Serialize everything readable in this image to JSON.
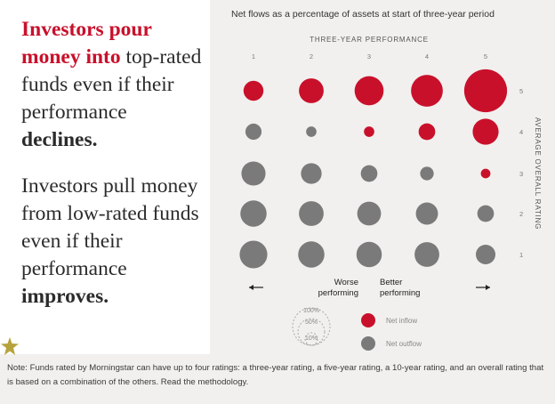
{
  "headline1": {
    "part1": "Investors pour money into",
    "part2": " top-rated funds even if their performance ",
    "part3": "declines."
  },
  "headline2": {
    "part1": "Investors pull money from low-rated funds even if their performance ",
    "part2": "improves."
  },
  "note": {
    "text": "Note: Funds rated by Morningstar can have up to four ratings: a three-year rating, a five-year rating, a 10-year rating, and an overall rating that is based on a combination of the others. ",
    "link": "Read the methodology."
  },
  "colors": {
    "inflow": "#c9102b",
    "outflow": "#7a7a7a",
    "headline_accent": "#c9102b"
  },
  "chart_data": {
    "type": "scatter",
    "title": "Net flows as a percentage of assets at start of three-year period",
    "x_title": "THREE-YEAR PERFORMANCE",
    "y_title": "AVERAGE OVERALL RATING",
    "x_ticks": [
      "1",
      "2",
      "3",
      "4",
      "5"
    ],
    "y_ticks": [
      "1",
      "2",
      "3",
      "4",
      "5"
    ],
    "worse_label": [
      "Worse",
      "performing"
    ],
    "better_label": [
      "Better",
      "performing"
    ],
    "legend": {
      "size_labels": [
        "100%",
        "50%",
        "10%"
      ],
      "size_values": [
        100,
        50,
        10
      ],
      "inflow": "Net inflow",
      "outflow": "Net outflow"
    },
    "points": [
      {
        "perf": 1,
        "rating": 5,
        "flow": 26
      },
      {
        "perf": 2,
        "rating": 5,
        "flow": 40
      },
      {
        "perf": 3,
        "rating": 5,
        "flow": 55
      },
      {
        "perf": 4,
        "rating": 5,
        "flow": 66
      },
      {
        "perf": 5,
        "rating": 5,
        "flow": 120
      },
      {
        "perf": 1,
        "rating": 4,
        "flow": -17
      },
      {
        "perf": 2,
        "rating": 4,
        "flow": -7
      },
      {
        "perf": 3,
        "rating": 4,
        "flow": 7
      },
      {
        "perf": 4,
        "rating": 4,
        "flow": 18
      },
      {
        "perf": 5,
        "rating": 4,
        "flow": 44
      },
      {
        "perf": 1,
        "rating": 3,
        "flow": -38
      },
      {
        "perf": 2,
        "rating": 3,
        "flow": -28
      },
      {
        "perf": 3,
        "rating": 3,
        "flow": -18
      },
      {
        "perf": 4,
        "rating": 3,
        "flow": -12
      },
      {
        "perf": 5,
        "rating": 3,
        "flow": 6
      },
      {
        "perf": 1,
        "rating": 2,
        "flow": -45
      },
      {
        "perf": 2,
        "rating": 2,
        "flow": -40
      },
      {
        "perf": 3,
        "rating": 2,
        "flow": -37
      },
      {
        "perf": 4,
        "rating": 2,
        "flow": -32
      },
      {
        "perf": 5,
        "rating": 2,
        "flow": -18
      },
      {
        "perf": 1,
        "rating": 1,
        "flow": -50
      },
      {
        "perf": 2,
        "rating": 1,
        "flow": -45
      },
      {
        "perf": 3,
        "rating": 1,
        "flow": -42
      },
      {
        "perf": 4,
        "rating": 1,
        "flow": -40
      },
      {
        "perf": 5,
        "rating": 1,
        "flow": -25
      }
    ]
  }
}
